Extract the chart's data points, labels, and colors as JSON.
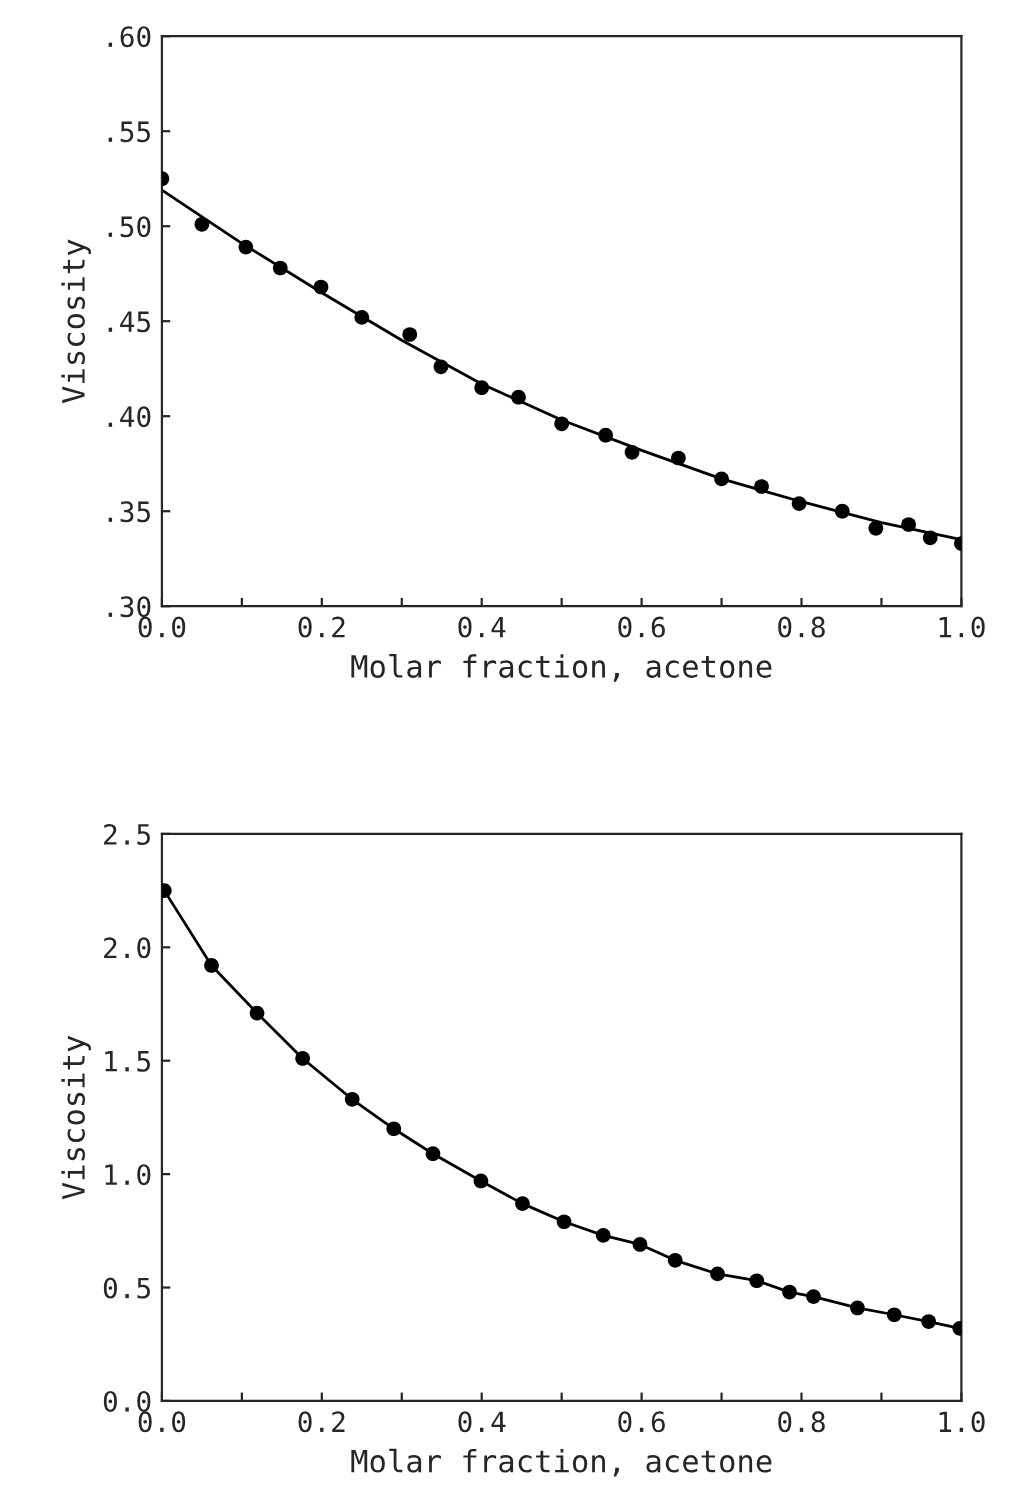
{
  "chart_data": [
    {
      "type": "scatter",
      "xlabel": "Molar fraction, acetone",
      "ylabel": "Viscosity",
      "xlim": [
        0,
        1
      ],
      "ylim": [
        0.3,
        0.6
      ],
      "xticks": [
        {
          "value": 0,
          "label": "0.0"
        },
        {
          "value": 0.1,
          "label": null
        },
        {
          "value": 0.2,
          "label": "0.2"
        },
        {
          "value": 0.3,
          "label": null
        },
        {
          "value": 0.4,
          "label": "0.4"
        },
        {
          "value": 0.5,
          "label": null
        },
        {
          "value": 0.6,
          "label": "0.6"
        },
        {
          "value": 0.7,
          "label": null
        },
        {
          "value": 0.8,
          "label": "0.8"
        },
        {
          "value": 0.9,
          "label": null
        },
        {
          "value": 1,
          "label": "1.0"
        }
      ],
      "yticks": [
        {
          "value": 0.3,
          "label": ".30"
        },
        {
          "value": 0.35,
          "label": ".35"
        },
        {
          "value": 0.4,
          "label": ".40"
        },
        {
          "value": 0.45,
          "label": ".45"
        },
        {
          "value": 0.5,
          "label": ".50"
        },
        {
          "value": 0.55,
          "label": ".55"
        },
        {
          "value": 0.6,
          "label": ".60"
        }
      ],
      "grid": false,
      "legend": false,
      "series": [
        {
          "marker": "circle",
          "color": "#000000",
          "x": [
            0,
            0.05,
            0.105,
            0.148,
            0.199,
            0.25,
            0.31,
            0.349,
            0.4,
            0.446,
            0.5,
            0.555,
            0.588,
            0.646,
            0.7,
            0.75,
            0.797,
            0.851,
            0.893,
            0.934,
            0.961,
            1.0
          ],
          "values": [
            0.525,
            0.501,
            0.489,
            0.478,
            0.468,
            0.452,
            0.443,
            0.426,
            0.415,
            0.41,
            0.396,
            0.39,
            0.381,
            0.378,
            0.367,
            0.363,
            0.354,
            0.35,
            0.341,
            0.343,
            0.336,
            0.333
          ]
        },
        {
          "type": "line",
          "line_style": "solid",
          "color": "#000000",
          "x": [
            0,
            0.1,
            0.2,
            0.3,
            0.4,
            0.5,
            0.6,
            0.7,
            0.8,
            0.9,
            1.0
          ],
          "values": [
            0.519,
            0.491,
            0.465,
            0.44,
            0.417,
            0.398,
            0.382,
            0.367,
            0.355,
            0.344,
            0.335
          ]
        }
      ]
    },
    {
      "type": "scatter",
      "xlabel": "Molar fraction, acetone",
      "ylabel": "Viscosity",
      "xlim": [
        0,
        1
      ],
      "ylim": [
        0,
        2.5
      ],
      "xticks": [
        {
          "value": 0,
          "label": "0.0"
        },
        {
          "value": 0.1,
          "label": null
        },
        {
          "value": 0.2,
          "label": "0.2"
        },
        {
          "value": 0.3,
          "label": null
        },
        {
          "value": 0.4,
          "label": "0.4"
        },
        {
          "value": 0.5,
          "label": null
        },
        {
          "value": 0.6,
          "label": "0.6"
        },
        {
          "value": 0.7,
          "label": null
        },
        {
          "value": 0.8,
          "label": "0.8"
        },
        {
          "value": 0.9,
          "label": null
        },
        {
          "value": 1,
          "label": "1.0"
        }
      ],
      "yticks": [
        {
          "value": 0,
          "label": "0.0"
        },
        {
          "value": 0.5,
          "label": "0.5"
        },
        {
          "value": 1,
          "label": "1.0"
        },
        {
          "value": 1.5,
          "label": "1.5"
        },
        {
          "value": 2,
          "label": "2.0"
        },
        {
          "value": 2.5,
          "label": "2.5"
        }
      ],
      "grid": false,
      "legend": false,
      "series": [
        {
          "marker": "circle",
          "color": "#000000",
          "x": [
            0.003,
            0.062,
            0.119,
            0.176,
            0.238,
            0.29,
            0.339,
            0.399,
            0.451,
            0.503,
            0.552,
            0.598,
            0.642,
            0.695,
            0.744,
            0.785,
            0.815,
            0.87,
            0.916,
            0.959,
            0.998
          ],
          "values": [
            2.25,
            1.92,
            1.71,
            1.51,
            1.33,
            1.2,
            1.09,
            0.97,
            0.87,
            0.79,
            0.73,
            0.69,
            0.62,
            0.56,
            0.53,
            0.48,
            0.46,
            0.41,
            0.38,
            0.35,
            0.32
          ]
        },
        {
          "type": "line",
          "line_style": "solid",
          "color": "#000000",
          "x": [
            0.003,
            0.062,
            0.119,
            0.176,
            0.238,
            0.29,
            0.339,
            0.399,
            0.451,
            0.503,
            0.552,
            0.598,
            0.642,
            0.695,
            0.744,
            0.785,
            0.815,
            0.87,
            0.916,
            0.959,
            0.998
          ],
          "values": [
            2.25,
            1.92,
            1.71,
            1.51,
            1.33,
            1.2,
            1.09,
            0.97,
            0.87,
            0.79,
            0.73,
            0.69,
            0.62,
            0.56,
            0.53,
            0.48,
            0.46,
            0.41,
            0.38,
            0.35,
            0.32
          ]
        }
      ]
    }
  ]
}
